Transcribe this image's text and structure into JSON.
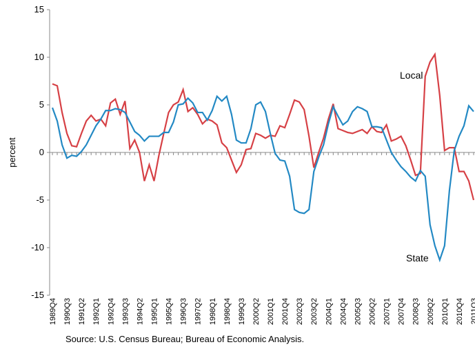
{
  "chart_data": {
    "type": "line",
    "y_label": "percent",
    "source": "Source: U.S. Census Bureau; Bureau of Economic Analysis.",
    "categories": [
      "1989Q4",
      null,
      null,
      "1990Q3",
      null,
      null,
      "1991Q2",
      null,
      null,
      "1992Q1",
      null,
      null,
      "1992Q4",
      null,
      null,
      "1993Q3",
      null,
      null,
      "1994Q2",
      null,
      null,
      "1995Q1",
      null,
      null,
      "1995Q4",
      null,
      null,
      "1996Q3",
      null,
      null,
      "1997Q2",
      null,
      null,
      "1998Q1",
      null,
      null,
      "1998Q4",
      null,
      null,
      "1999Q3",
      null,
      null,
      "2000Q2",
      null,
      null,
      "2001Q1",
      null,
      null,
      "2001Q4",
      null,
      null,
      "2002Q3",
      null,
      null,
      "2003Q2",
      null,
      null,
      "2004Q1",
      null,
      null,
      "2004Q4",
      null,
      null,
      "2005Q3",
      null,
      null,
      "2006Q2",
      null,
      null,
      "2007Q1",
      null,
      null,
      "2007Q4",
      null,
      null,
      "2008Q3",
      null,
      null,
      "2009Q2",
      null,
      null,
      "2010Q1",
      null,
      null,
      "2010Q4",
      null,
      null,
      "2011Q3"
    ],
    "series": [
      {
        "name": "Local",
        "color": "#d64045",
        "values": [
          7.2,
          7.0,
          4.2,
          2.0,
          0.7,
          0.6,
          2.0,
          3.3,
          3.9,
          3.3,
          3.5,
          2.8,
          5.2,
          5.6,
          4.0,
          5.4,
          0.4,
          1.3,
          0.0,
          -3.0,
          -1.3,
          -3.0,
          -0.3,
          2.0,
          4.2,
          5.0,
          5.3,
          6.6,
          4.3,
          4.7,
          4.0,
          3.0,
          3.5,
          3.3,
          2.9,
          1.0,
          0.5,
          -0.8,
          -2.1,
          -1.3,
          0.3,
          0.4,
          2.0,
          1.8,
          1.5,
          1.8,
          1.7,
          2.8,
          2.6,
          4.0,
          5.5,
          5.3,
          4.5,
          1.7,
          -1.6,
          0.0,
          1.5,
          3.5,
          5.1,
          2.5,
          2.3,
          2.1,
          2.0,
          2.2,
          2.4,
          2.0,
          2.7,
          2.2,
          2.1,
          2.9,
          1.2,
          1.4,
          1.7,
          0.7,
          -0.8,
          -2.4,
          -2.2,
          8.0,
          9.5,
          10.3,
          6.0,
          0.2,
          0.5,
          0.5,
          -2.0,
          -2.0,
          -3.0,
          -5.0
        ]
      },
      {
        "name": "State",
        "color": "#2389c4",
        "values": [
          4.7,
          3.3,
          0.8,
          -0.6,
          -0.3,
          -0.4,
          0.1,
          0.8,
          1.8,
          2.8,
          3.5,
          4.4,
          4.4,
          4.6,
          4.5,
          4.2,
          3.2,
          2.2,
          1.8,
          1.2,
          1.7,
          1.7,
          1.7,
          2.1,
          2.1,
          3.2,
          5.0,
          5.1,
          5.7,
          5.2,
          4.2,
          4.2,
          3.4,
          4.4,
          5.9,
          5.4,
          5.9,
          4.0,
          1.3,
          1.0,
          1.0,
          2.5,
          5.0,
          5.3,
          4.3,
          2.0,
          -0.1,
          -0.8,
          -0.9,
          -2.5,
          -6.0,
          -6.3,
          -6.4,
          -6.0,
          -2.0,
          -0.5,
          0.8,
          3.0,
          4.8,
          3.8,
          2.9,
          3.3,
          4.3,
          4.8,
          4.6,
          4.3,
          2.7,
          2.7,
          2.6,
          1.3,
          0.0,
          -0.8,
          -1.5,
          -2.0,
          -2.6,
          -3.0,
          -1.9,
          -2.5,
          -7.6,
          -9.8,
          -11.3,
          -9.8,
          -4.0,
          0.2,
          1.7,
          2.8,
          4.9,
          4.3
        ]
      }
    ],
    "ylim": [
      -15,
      15
    ],
    "yticks": [
      -15,
      -10,
      -5,
      0,
      5,
      10,
      15
    ]
  }
}
